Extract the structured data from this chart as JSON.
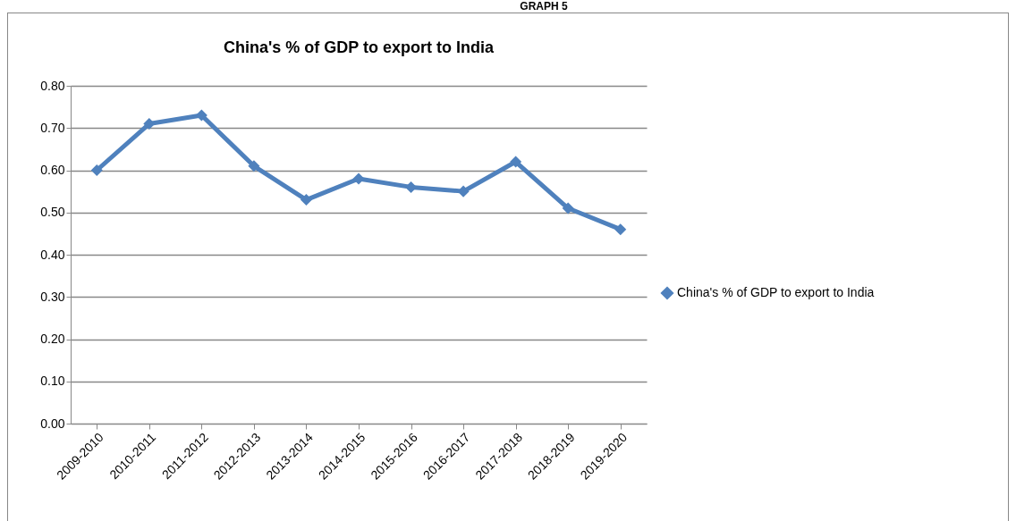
{
  "chart_data": {
    "type": "line",
    "title": "China's % of GDP to export to India",
    "annotations": [
      "GRAPH 5"
    ],
    "categories": [
      "2009-2010",
      "2010-2011",
      "2011-2012",
      "2012-2013",
      "2013-2014",
      "2014-2015",
      "2015-2016",
      "2016-2017",
      "2017-2018",
      "2018-2019",
      "2019-2020"
    ],
    "series": [
      {
        "name": "China's % of GDP to export to India",
        "color": "#4f81bd",
        "values": [
          0.6,
          0.71,
          0.73,
          0.61,
          0.53,
          0.58,
          0.56,
          0.55,
          0.62,
          0.51,
          0.46
        ]
      }
    ],
    "ylim": [
      0,
      0.8
    ],
    "yticks": [
      {
        "value": 0,
        "label": "0.00"
      },
      {
        "value": 0.1,
        "label": "0.10"
      },
      {
        "value": 0.2,
        "label": "0.20"
      },
      {
        "value": 0.3,
        "label": "0.30"
      },
      {
        "value": 0.4,
        "label": "0.40"
      },
      {
        "value": 0.5,
        "label": "0.50"
      },
      {
        "value": 0.6,
        "label": "0.60"
      },
      {
        "value": 0.7,
        "label": "0.70"
      },
      {
        "value": 0.8,
        "label": "0.80"
      }
    ],
    "grid": "y",
    "legend": "right",
    "marker": "diamond",
    "line_style": "solid"
  }
}
